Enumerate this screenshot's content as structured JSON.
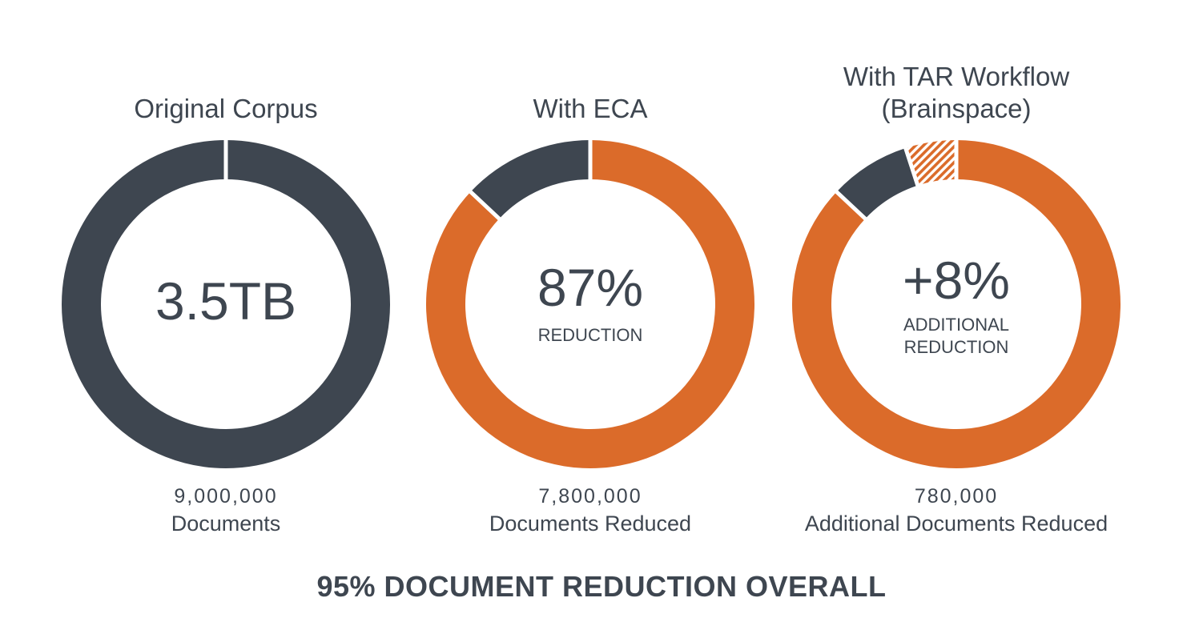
{
  "colors": {
    "dark": "#3e4650",
    "orange": "#db6b2a",
    "gap": "#ffffff"
  },
  "footer": "95% DOCUMENT REDUCTION OVERALL",
  "chart_data": [
    {
      "type": "pie",
      "variant": "donut",
      "title": "Original Corpus",
      "center_value": "3.5TB",
      "center_label": "",
      "count": "9,000,000",
      "caption": "Documents",
      "slices": [
        {
          "value": 100,
          "color": "#3e4650",
          "pattern": "solid"
        }
      ]
    },
    {
      "type": "pie",
      "variant": "donut",
      "title": "With ECA",
      "center_value": "87%",
      "center_label": "REDUCTION",
      "count": "7,800,000",
      "caption": "Documents Reduced",
      "slices": [
        {
          "value": 87,
          "color": "#db6b2a",
          "pattern": "solid"
        },
        {
          "value": 13,
          "color": "#3e4650",
          "pattern": "solid"
        }
      ]
    },
    {
      "type": "pie",
      "variant": "donut",
      "title": "With TAR Workflow (Brainspace)",
      "title_lines": [
        "With TAR Workflow",
        "(Brainspace)"
      ],
      "center_value": "+8%",
      "center_label_lines": [
        "ADDITIONAL",
        "REDUCTION"
      ],
      "count": "780,000",
      "caption": "Additional Documents Reduced",
      "slices": [
        {
          "value": 87,
          "color": "#db6b2a",
          "pattern": "solid"
        },
        {
          "value": 8,
          "color": "#3e4650",
          "pattern": "solid"
        },
        {
          "value": 5,
          "color": "#db6b2a",
          "pattern": "hatched"
        }
      ]
    }
  ]
}
